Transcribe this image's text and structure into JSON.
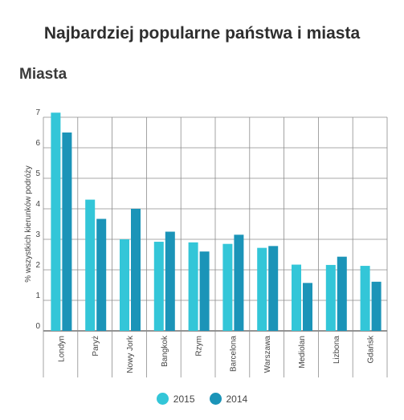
{
  "page": {
    "title": "Najbardziej popularne państwa i miasta",
    "section": "Miasta"
  },
  "chart_data": {
    "type": "bar",
    "ylabel": "% wszystkich kierunków podróży",
    "ylim": [
      0,
      7
    ],
    "yticks": [
      0,
      1,
      2,
      3,
      4,
      5,
      6,
      7
    ],
    "grid": true,
    "legend_position": "bottom",
    "categories": [
      "Londyn",
      "Paryż",
      "Nowy Jork",
      "Bangkok",
      "Rzym",
      "Barcelona",
      "Warszawa",
      "Mediolan",
      "Lizbona",
      "Gdańsk"
    ],
    "series": [
      {
        "name": "2015",
        "color": "#33c6d8",
        "values": [
          7.15,
          4.3,
          3.0,
          2.92,
          2.9,
          2.85,
          2.72,
          2.17,
          2.16,
          2.13
        ]
      },
      {
        "name": "2014",
        "color": "#1b94b8",
        "values": [
          6.5,
          3.67,
          4.0,
          3.25,
          2.6,
          3.15,
          2.78,
          1.57,
          2.43,
          1.61
        ]
      }
    ]
  }
}
